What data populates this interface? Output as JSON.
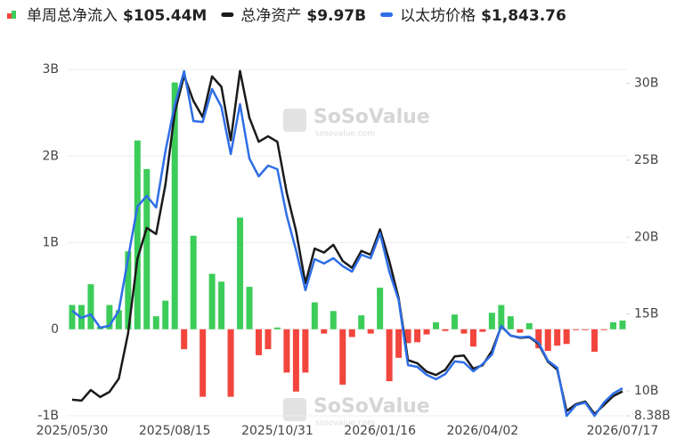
{
  "chart_data": {
    "type": "bar-line",
    "watermark": "SoSoValue",
    "watermark_sub": "sosovalue.com",
    "categories": [
      "2025/05/30",
      null,
      null,
      null,
      null,
      null,
      null,
      null,
      null,
      null,
      null,
      "2025/08/15",
      null,
      null,
      null,
      null,
      null,
      null,
      null,
      null,
      null,
      null,
      "2025/10/31",
      null,
      null,
      null,
      null,
      null,
      null,
      null,
      null,
      null,
      null,
      "2026/01/16",
      null,
      null,
      null,
      null,
      null,
      null,
      null,
      null,
      null,
      null,
      "2026/04/02",
      null,
      null,
      null,
      null,
      null,
      null,
      null,
      null,
      null,
      null,
      null,
      null,
      null,
      null,
      "2026/07/17"
    ],
    "ylim": [
      -1,
      3
    ],
    "yticks": [
      {
        "value": -1,
        "label": "-1B"
      },
      0,
      {
        "value": 1,
        "label": "1B"
      },
      {
        "value": 2,
        "label": "2B"
      },
      {
        "value": 3,
        "label": "3B"
      }
    ],
    "y2lim": [
      8.38,
      30.9
    ],
    "y2ticks": [
      {
        "value": 8.38,
        "label": "8.38B"
      },
      {
        "value": 10,
        "label": "10B"
      },
      {
        "value": 15,
        "label": "15B"
      },
      {
        "value": 20,
        "label": "20B"
      },
      {
        "value": 25,
        "label": "25B"
      },
      {
        "value": 30,
        "label": "30B"
      }
    ],
    "y3lim": [
      1583,
      4851
    ],
    "grid": true,
    "series": [
      {
        "name": "单周总净流入",
        "legend_value": "$105.44M",
        "type": "bar",
        "positive_color": "#3ccc5a",
        "negative_color": "#f2453d",
        "values": [
          0.28,
          0.28,
          0.52,
          0.03,
          0.28,
          0.22,
          0.9,
          2.18,
          1.85,
          0.15,
          0.33,
          2.85,
          -0.23,
          1.08,
          -0.78,
          0.64,
          0.55,
          -0.78,
          1.29,
          0.49,
          -0.3,
          -0.23,
          0.02,
          -0.5,
          -0.72,
          -0.5,
          0.31,
          -0.05,
          0.21,
          -0.64,
          -0.09,
          0.16,
          -0.05,
          0.48,
          -0.6,
          -0.33,
          -0.16,
          -0.15,
          -0.06,
          0.08,
          -0.02,
          0.17,
          -0.05,
          -0.2,
          -0.03,
          0.19,
          0.28,
          0.15,
          -0.04,
          0.07,
          -0.22,
          -0.25,
          -0.19,
          -0.17,
          -0.01,
          -0.01,
          -0.26,
          -0.01,
          0.08,
          0.1
        ]
      },
      {
        "name": "总净资产",
        "legend_value": "$9.97B",
        "type": "line",
        "axis": "y2",
        "color": "#1a1a1a",
        "values": [
          9.43,
          9.37,
          10.06,
          9.6,
          9.94,
          10.8,
          13.74,
          18.6,
          20.6,
          20.2,
          23.4,
          28.1,
          30.5,
          28.85,
          27.8,
          30.45,
          29.77,
          26.3,
          30.8,
          27.76,
          26.2,
          26.55,
          26.2,
          22.9,
          20.4,
          17.0,
          19.25,
          19.0,
          19.5,
          18.45,
          18.0,
          19.1,
          18.85,
          20.5,
          18.45,
          16.03,
          12.0,
          11.8,
          11.26,
          11.03,
          11.38,
          12.24,
          12.3,
          11.44,
          11.67,
          12.6,
          14.2,
          13.6,
          13.45,
          13.5,
          13.05,
          11.9,
          11.38,
          8.68,
          9.14,
          9.31,
          8.5,
          9.08,
          9.66,
          9.97
        ]
      },
      {
        "name": "以太坊价格",
        "legend_value": "$1,843.76",
        "type": "line",
        "axis": "y3",
        "color": "#2f6ee6",
        "values": [
          2575,
          2507,
          2541,
          2415,
          2432,
          2575,
          3070,
          3557,
          3658,
          3549,
          4078,
          4515,
          4834,
          4364,
          4355,
          4666,
          4498,
          4053,
          4523,
          4011,
          3843,
          3944,
          3910,
          3473,
          3146,
          2768,
          3062,
          3020,
          3070,
          2995,
          2944,
          3104,
          3070,
          3305,
          2944,
          2675,
          2062,
          2045,
          1970,
          1928,
          1978,
          2096,
          2087,
          2003,
          2071,
          2163,
          2432,
          2339,
          2323,
          2331,
          2272,
          2104,
          2037,
          1583,
          1684,
          1709,
          1583,
          1709,
          1793,
          1843.76
        ]
      }
    ]
  }
}
